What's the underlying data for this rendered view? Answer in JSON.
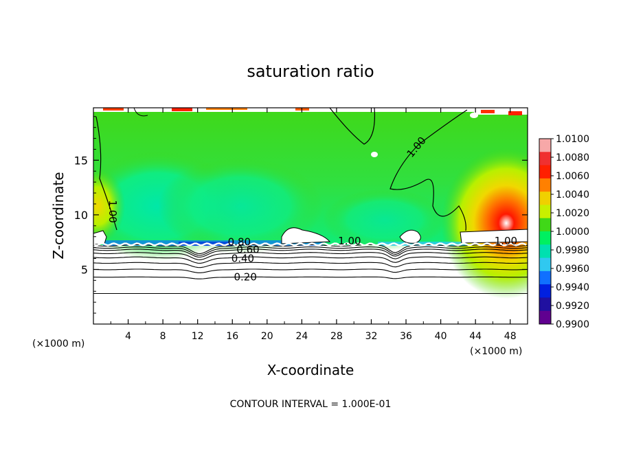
{
  "chart_data": {
    "type": "heatmap",
    "title": "saturation ratio",
    "xlabel": "X-coordinate",
    "ylabel": "Z-coordinate",
    "x_unit_left": "(×1000 m)",
    "x_unit_right": "(×1000 m)",
    "footer": "CONTOUR INTERVAL = 1.000E-01",
    "xlim": [
      0,
      50
    ],
    "ylim": [
      0,
      19.8
    ],
    "x_ticks": [
      4,
      8,
      12,
      16,
      20,
      24,
      28,
      32,
      36,
      40,
      44,
      48
    ],
    "y_ticks": [
      5,
      10,
      15
    ],
    "colorbar": {
      "labels": [
        "1.0100",
        "1.0080",
        "1.0060",
        "1.0040",
        "1.0020",
        "1.0000",
        "0.9980",
        "0.9960",
        "0.9940",
        "0.9920",
        "0.9900"
      ],
      "colors": [
        "#f7a8a8",
        "#f03030",
        "#ff2000",
        "#ff8000",
        "#f0d000",
        "#c8f000",
        "#40d818",
        "#00f060",
        "#00e0b0",
        "#30c8f0",
        "#1070ff",
        "#0020e0",
        "#2010a0",
        "#600090"
      ]
    },
    "contour_labels": [
      {
        "text": "1.00",
        "x": 1.8,
        "z": 10.3
      },
      {
        "text": "1.00",
        "x": 37.5,
        "z": 16
      },
      {
        "text": "1.00",
        "x": 29.5,
        "z": 7.3
      },
      {
        "text": "1.00",
        "x": 47.5,
        "z": 7.3
      },
      {
        "text": "0.80",
        "x": 16.8,
        "z": 7.2
      },
      {
        "text": "0.60",
        "x": 17.8,
        "z": 6.5
      },
      {
        "text": "0.40",
        "x": 17.2,
        "z": 5.7
      },
      {
        "text": "0.20",
        "x": 17.5,
        "z": 4.0
      }
    ],
    "lower_contours_z": [
      2.8,
      4.3,
      5.0,
      5.6,
      6.1,
      6.5,
      6.8,
      7.0,
      7.2
    ],
    "cloud_top_z": 7.3
  }
}
